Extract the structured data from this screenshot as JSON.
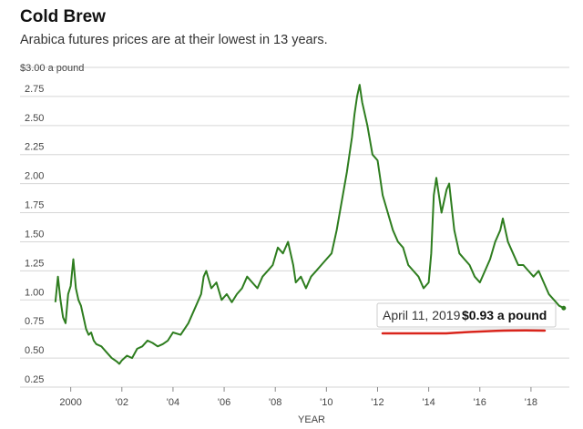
{
  "chart_data": {
    "type": "line",
    "title": "Cold Brew",
    "subtitle": "Arabica futures prices are at their lowest in 13 years.",
    "xlabel": "YEAR",
    "ylabel": "",
    "y_top_label": "$3.00 a pound",
    "ylim": [
      0.25,
      3.0
    ],
    "xlim": [
      1999.3,
      2019.5
    ],
    "y_ticks": [
      0.25,
      0.5,
      0.75,
      1.0,
      1.25,
      1.5,
      1.75,
      2.0,
      2.25,
      2.5,
      2.75
    ],
    "y_tick_labels": [
      "0.25",
      "0.50",
      "0.75",
      "1.00",
      "1.25",
      "1.50",
      "1.75",
      "2.00",
      "2.25",
      "2.50",
      "2.75"
    ],
    "x_ticks": [
      2000,
      2002,
      2004,
      2006,
      2008,
      2010,
      2012,
      2014,
      2016,
      2018
    ],
    "x_tick_labels": [
      "2000",
      "'02",
      "'04",
      "'06",
      "'08",
      "'10",
      "'12",
      "'14",
      "'16",
      "'18"
    ],
    "grid": "horizontal",
    "line_color": "#2e7d1f",
    "series": [
      {
        "x": [
          1999.4,
          1999.5,
          1999.6,
          1999.7,
          1999.8,
          1999.9,
          2000.0,
          2000.1,
          2000.2,
          2000.3,
          2000.4,
          2000.5,
          2000.6,
          2000.7,
          2000.8,
          2000.9,
          2001.0,
          2001.2,
          2001.4,
          2001.6,
          2001.8,
          2001.9,
          2002.0,
          2002.2,
          2002.4,
          2002.6,
          2002.8,
          2003.0,
          2003.2,
          2003.4,
          2003.6,
          2003.8,
          2004.0,
          2004.3,
          2004.6,
          2004.9,
          2005.1,
          2005.2,
          2005.3,
          2005.5,
          2005.7,
          2005.9,
          2006.1,
          2006.3,
          2006.5,
          2006.7,
          2006.9,
          2007.1,
          2007.3,
          2007.5,
          2007.7,
          2007.9,
          2008.1,
          2008.3,
          2008.5,
          2008.7,
          2008.8,
          2009.0,
          2009.2,
          2009.4,
          2009.6,
          2009.8,
          2010.0,
          2010.2,
          2010.4,
          2010.6,
          2010.8,
          2011.0,
          2011.1,
          2011.2,
          2011.3,
          2011.4,
          2011.6,
          2011.8,
          2012.0,
          2012.2,
          2012.4,
          2012.6,
          2012.8,
          2013.0,
          2013.2,
          2013.4,
          2013.6,
          2013.8,
          2014.0,
          2014.1,
          2014.2,
          2014.3,
          2014.5,
          2014.7,
          2014.8,
          2015.0,
          2015.2,
          2015.4,
          2015.6,
          2015.8,
          2016.0,
          2016.2,
          2016.4,
          2016.6,
          2016.8,
          2016.9,
          2017.1,
          2017.3,
          2017.5,
          2017.7,
          2017.9,
          2018.1,
          2018.3,
          2018.5,
          2018.7,
          2018.9,
          2019.1,
          2019.28
        ],
        "y": [
          0.98,
          1.2,
          1.0,
          0.85,
          0.8,
          1.05,
          1.12,
          1.35,
          1.1,
          1.0,
          0.95,
          0.85,
          0.75,
          0.7,
          0.72,
          0.65,
          0.62,
          0.6,
          0.55,
          0.5,
          0.47,
          0.45,
          0.48,
          0.52,
          0.5,
          0.58,
          0.6,
          0.65,
          0.63,
          0.6,
          0.62,
          0.65,
          0.72,
          0.7,
          0.8,
          0.95,
          1.05,
          1.2,
          1.25,
          1.1,
          1.15,
          1.0,
          1.05,
          0.98,
          1.05,
          1.1,
          1.2,
          1.15,
          1.1,
          1.2,
          1.25,
          1.3,
          1.45,
          1.4,
          1.5,
          1.3,
          1.15,
          1.2,
          1.1,
          1.2,
          1.25,
          1.3,
          1.35,
          1.4,
          1.6,
          1.85,
          2.1,
          2.4,
          2.6,
          2.75,
          2.85,
          2.7,
          2.5,
          2.25,
          2.2,
          1.9,
          1.75,
          1.6,
          1.5,
          1.45,
          1.3,
          1.25,
          1.2,
          1.1,
          1.15,
          1.4,
          1.9,
          2.05,
          1.75,
          1.95,
          2.0,
          1.6,
          1.4,
          1.35,
          1.3,
          1.2,
          1.15,
          1.25,
          1.35,
          1.5,
          1.6,
          1.7,
          1.5,
          1.4,
          1.3,
          1.3,
          1.25,
          1.2,
          1.25,
          1.15,
          1.05,
          1.0,
          0.95,
          0.93
        ]
      }
    ],
    "annotation": {
      "date_text": "April 11, 2019",
      "value_text": "$0.93 a pound",
      "x": 2019.28,
      "y": 0.93
    }
  }
}
